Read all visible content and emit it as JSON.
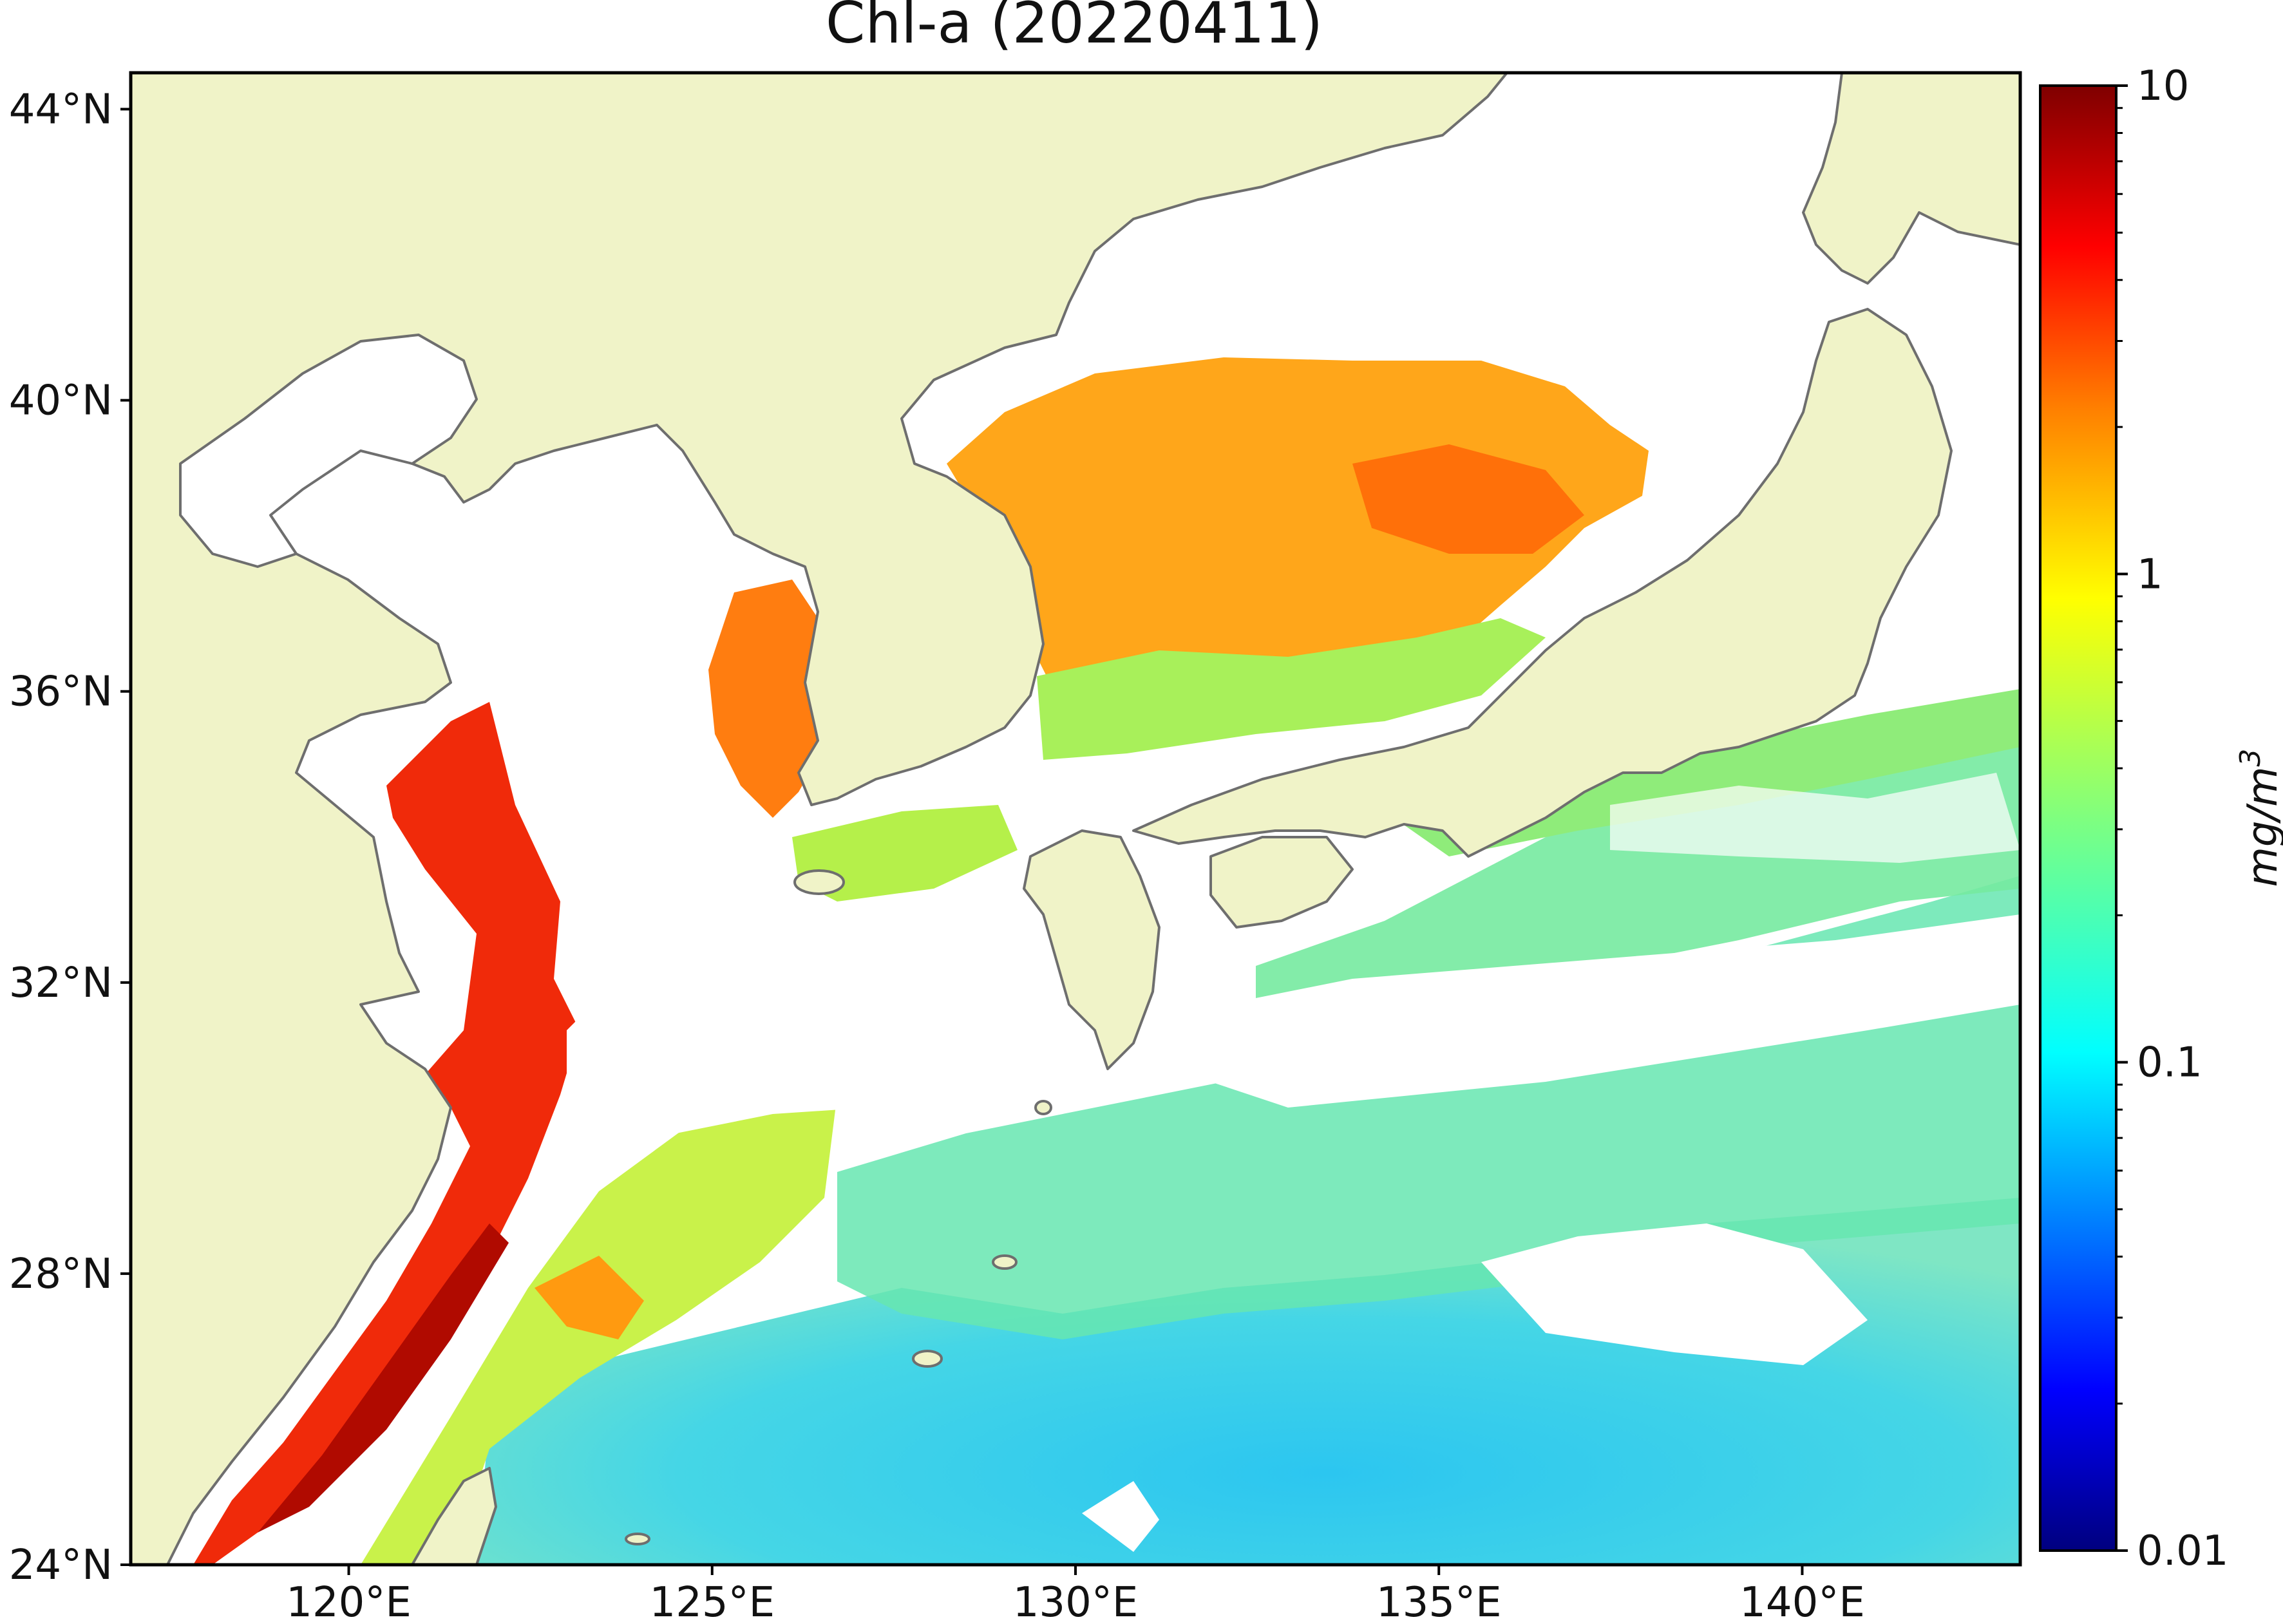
{
  "map": {
    "title": "Chl-a (20220411)",
    "lon_range": [
      117,
      143
    ],
    "lat_range": [
      24,
      44.5
    ],
    "lon_ticks": [
      {
        "value": 120,
        "label": "120°E"
      },
      {
        "value": 125,
        "label": "125°E"
      },
      {
        "value": 130,
        "label": "130°E"
      },
      {
        "value": 135,
        "label": "135°E"
      },
      {
        "value": 140,
        "label": "140°E"
      }
    ],
    "lat_ticks": [
      {
        "value": 44,
        "label": "44°N"
      },
      {
        "value": 40,
        "label": "40°N"
      },
      {
        "value": 36,
        "label": "36°N"
      },
      {
        "value": 32,
        "label": "32°N"
      },
      {
        "value": 28,
        "label": "28°N"
      },
      {
        "value": 24,
        "label": "24°N"
      }
    ],
    "land_color": "#f0f3c8",
    "coast_color": "#6e6e6e",
    "nodata_color": "#ffffff"
  },
  "colorbar": {
    "label_text": "mg/m",
    "label_superscript": "3",
    "scale": "log",
    "range": [
      0.01,
      10
    ],
    "colormap": "jet",
    "ticks": [
      {
        "value": 10,
        "label": "10"
      },
      {
        "value": 1,
        "label": "1"
      },
      {
        "value": 0.1,
        "label": "0.1"
      },
      {
        "value": 0.01,
        "label": "0.01"
      }
    ],
    "colors": [
      "#00007f",
      "#0000ff",
      "#007fff",
      "#00ffff",
      "#7fff7f",
      "#ffff00",
      "#ff7f00",
      "#ff0000",
      "#7f0000"
    ]
  }
}
